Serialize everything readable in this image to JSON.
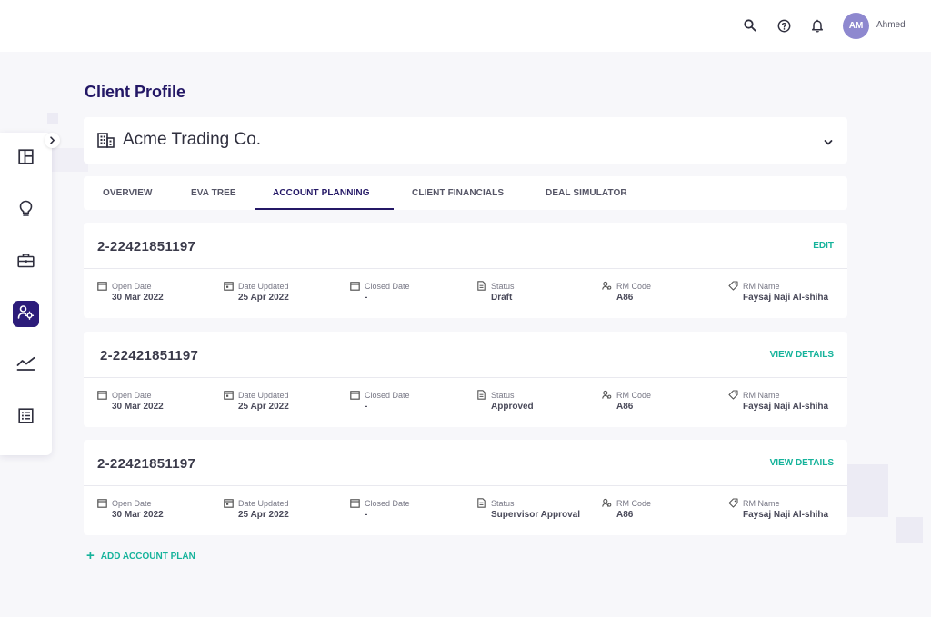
{
  "topbar": {
    "icons": [
      "search-icon",
      "help-icon",
      "bell-icon"
    ],
    "avatar_initials": "AM",
    "user_name": "Ahmed"
  },
  "sidebar": {
    "items": [
      {
        "icon": "dashboard-icon",
        "active": false
      },
      {
        "icon": "lightbulb-icon",
        "active": false
      },
      {
        "icon": "briefcase-icon",
        "active": false
      },
      {
        "icon": "user-settings-icon",
        "active": true
      },
      {
        "icon": "trend-chart-icon",
        "active": false
      },
      {
        "icon": "list-icon",
        "active": false
      }
    ]
  },
  "page": {
    "title": "Client Profile"
  },
  "client": {
    "name": "Acme Trading Co.",
    "icon": "building-icon"
  },
  "tabs": [
    {
      "label": "OVERVIEW",
      "active": false
    },
    {
      "label": "EVA TREE",
      "active": false
    },
    {
      "label": "ACCOUNT PLANNING",
      "active": true
    },
    {
      "label": "CLIENT FINANCIALS",
      "active": false
    },
    {
      "label": "DEAL SIMULATOR",
      "active": false
    }
  ],
  "field_labels": {
    "open_date": "Open Date",
    "date_updated": "Date Updated",
    "closed_date": "Closed Date",
    "status": "Status",
    "rm_code": "RM Code",
    "rm_name": "RM Name"
  },
  "plans": [
    {
      "id": "2-22421851197",
      "action": "EDIT",
      "open_date": "30 Mar 2022",
      "date_updated": "25 Apr 2022",
      "closed_date": "-",
      "status": "Draft",
      "rm_code": "A86",
      "rm_name": "Faysaj Naji Al-shiha"
    },
    {
      "id": "2-22421851197",
      "action": "VIEW DETAILS",
      "open_date": "30 Mar 2022",
      "date_updated": "25 Apr 2022",
      "closed_date": "-",
      "status": "Approved",
      "rm_code": "A86",
      "rm_name": "Faysaj Naji Al-shiha"
    },
    {
      "id": "2-22421851197",
      "action": "VIEW DETAILS",
      "open_date": "30 Mar 2022",
      "date_updated": "25 Apr 2022",
      "closed_date": "-",
      "status": "Supervisor Approval",
      "rm_code": "A86",
      "rm_name": "Faysaj Naji Al-shiha"
    }
  ],
  "add_plan": {
    "label": "ADD ACCOUNT PLAN",
    "icon": "plus-icon"
  },
  "colors": {
    "brand": "#241866",
    "accent": "#16b39b",
    "background": "#f7f7fa"
  }
}
